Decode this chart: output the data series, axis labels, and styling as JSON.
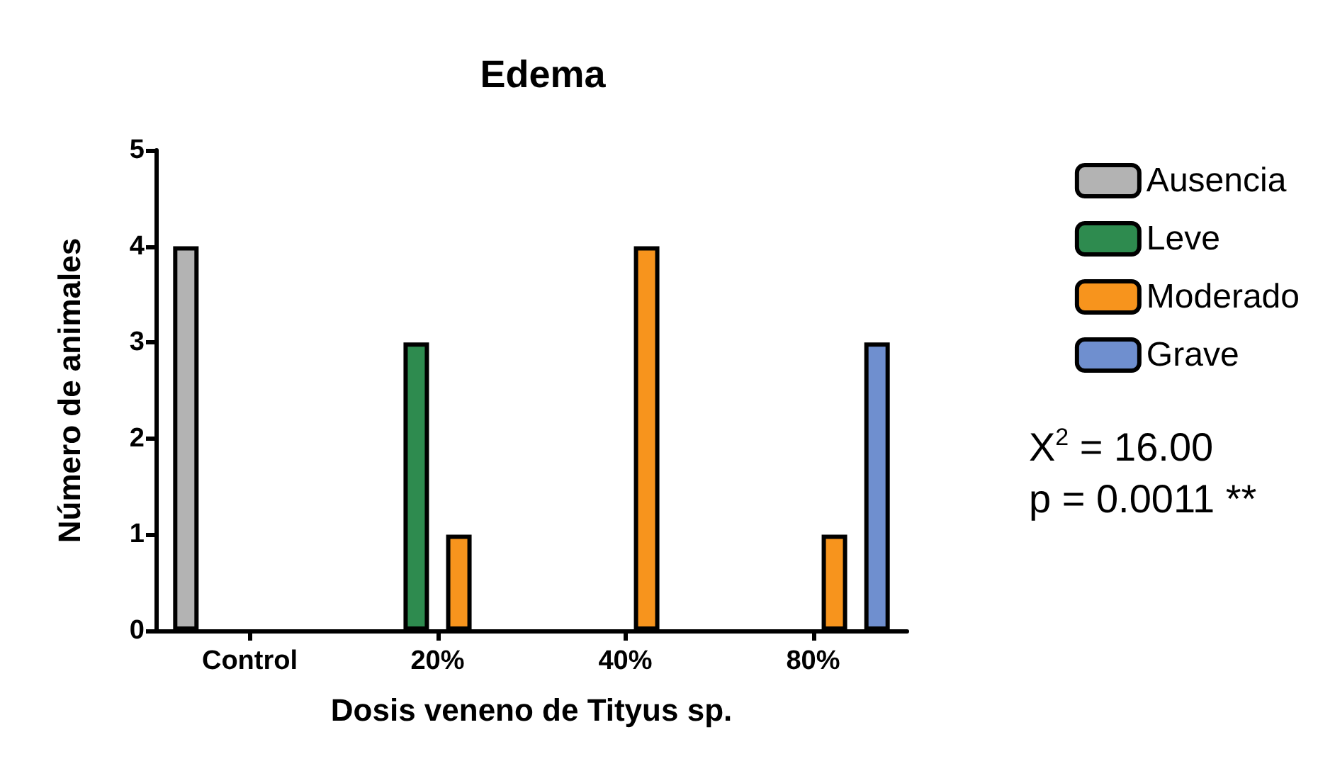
{
  "chart_data": {
    "type": "bar",
    "title": "Edema",
    "xlabel": "Dosis veneno de Tityus sp.",
    "ylabel": "Número de animales",
    "categories": [
      "Control",
      "20%",
      "40%",
      "80%"
    ],
    "series": [
      {
        "name": "Ausencia",
        "color": "#b3b3b3",
        "values": [
          4,
          0,
          0,
          0
        ]
      },
      {
        "name": "Leve",
        "color": "#2e8b4f",
        "values": [
          0,
          3,
          0,
          0
        ]
      },
      {
        "name": "Moderado",
        "color": "#f7941d",
        "values": [
          0,
          1,
          4,
          1
        ]
      },
      {
        "name": "Grave",
        "color": "#6f8fcf",
        "values": [
          0,
          0,
          0,
          3
        ]
      }
    ],
    "ylim": [
      0,
      5
    ],
    "yticks": [
      0,
      1,
      2,
      3,
      4,
      5
    ],
    "grid": false,
    "legend": "right",
    "annotations": [
      "X$^{2}$ = 16.00",
      "p = 0.0011 **"
    ]
  }
}
